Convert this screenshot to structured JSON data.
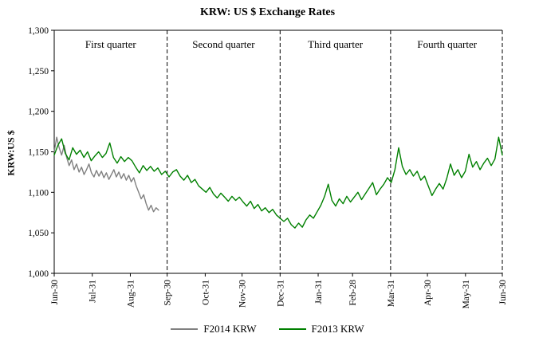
{
  "title": "KRW: US $ Exchange Rates",
  "y_axis": {
    "label": "KRW:US $",
    "min": 1000,
    "max": 1300,
    "tick_step": 50,
    "tick_labels": [
      "1,000",
      "1,050",
      "1,100",
      "1,150",
      "1,200",
      "1,250",
      "1,300"
    ]
  },
  "x_axis": {
    "tick_labels": [
      "Jun-30",
      "Jul-31",
      "Aug-31",
      "Sep-30",
      "Oct-31",
      "Nov-30",
      "Dec-31",
      "Jan-31",
      "Feb-28",
      "Mar-31",
      "Apr-30",
      "May-31",
      "Jun-30"
    ],
    "tick_days": [
      0,
      31,
      62,
      92,
      123,
      153,
      184,
      215,
      243,
      274,
      304,
      335,
      365
    ]
  },
  "quarters": [
    {
      "label": "First quarter",
      "mid_day": 46
    },
    {
      "label": "Second quarter",
      "mid_day": 138
    },
    {
      "label": "Third quarter",
      "mid_day": 229
    },
    {
      "label": "Fourth quarter",
      "mid_day": 320
    }
  ],
  "divider_days": [
    92,
    184,
    274,
    365
  ],
  "legend": [
    {
      "label": "F2014 KRW",
      "color": "#808080"
    },
    {
      "label": "F2013 KRW",
      "color": "#008000"
    }
  ],
  "chart_data": {
    "type": "line",
    "title": "KRW: US $ Exchange Rates",
    "xlabel": "",
    "ylabel": "KRW:US $",
    "x_unit": "days since Jun-30",
    "x_range": [
      0,
      365
    ],
    "ylim": [
      1000,
      1300
    ],
    "grid": false,
    "legend_position": "bottom",
    "series": [
      {
        "name": "F2014 KRW",
        "color": "#808080",
        "x_start": 0,
        "x_end": 85,
        "values": [
          1150,
          1168,
          1155,
          1146,
          1158,
          1143,
          1133,
          1140,
          1128,
          1135,
          1125,
          1131,
          1122,
          1128,
          1135,
          1124,
          1119,
          1127,
          1120,
          1126,
          1118,
          1124,
          1116,
          1122,
          1128,
          1119,
          1125,
          1117,
          1123,
          1115,
          1121,
          1113,
          1118,
          1108,
          1100,
          1092,
          1097,
          1086,
          1078,
          1084,
          1076,
          1081,
          1078
        ]
      },
      {
        "name": "F2013 KRW",
        "color": "#008000",
        "x_start": 0,
        "x_end": 365,
        "values": [
          1146,
          1158,
          1166,
          1148,
          1140,
          1155,
          1147,
          1152,
          1143,
          1150,
          1139,
          1145,
          1150,
          1143,
          1148,
          1161,
          1143,
          1136,
          1144,
          1138,
          1143,
          1139,
          1131,
          1124,
          1133,
          1127,
          1132,
          1126,
          1130,
          1122,
          1126,
          1119,
          1125,
          1128,
          1120,
          1115,
          1121,
          1112,
          1116,
          1108,
          1104,
          1100,
          1106,
          1098,
          1093,
          1099,
          1094,
          1089,
          1095,
          1090,
          1094,
          1088,
          1083,
          1089,
          1080,
          1085,
          1077,
          1081,
          1075,
          1079,
          1072,
          1068,
          1064,
          1068,
          1060,
          1056,
          1062,
          1057,
          1066,
          1072,
          1068,
          1076,
          1084,
          1095,
          1110,
          1090,
          1083,
          1092,
          1086,
          1095,
          1088,
          1094,
          1100,
          1091,
          1098,
          1105,
          1112,
          1097,
          1104,
          1110,
          1118,
          1112,
          1128,
          1155,
          1132,
          1122,
          1128,
          1120,
          1126,
          1115,
          1120,
          1108,
          1096,
          1104,
          1111,
          1104,
          1117,
          1135,
          1121,
          1128,
          1118,
          1126,
          1147,
          1131,
          1138,
          1128,
          1136,
          1142,
          1133,
          1141,
          1168,
          1146
        ]
      }
    ]
  }
}
